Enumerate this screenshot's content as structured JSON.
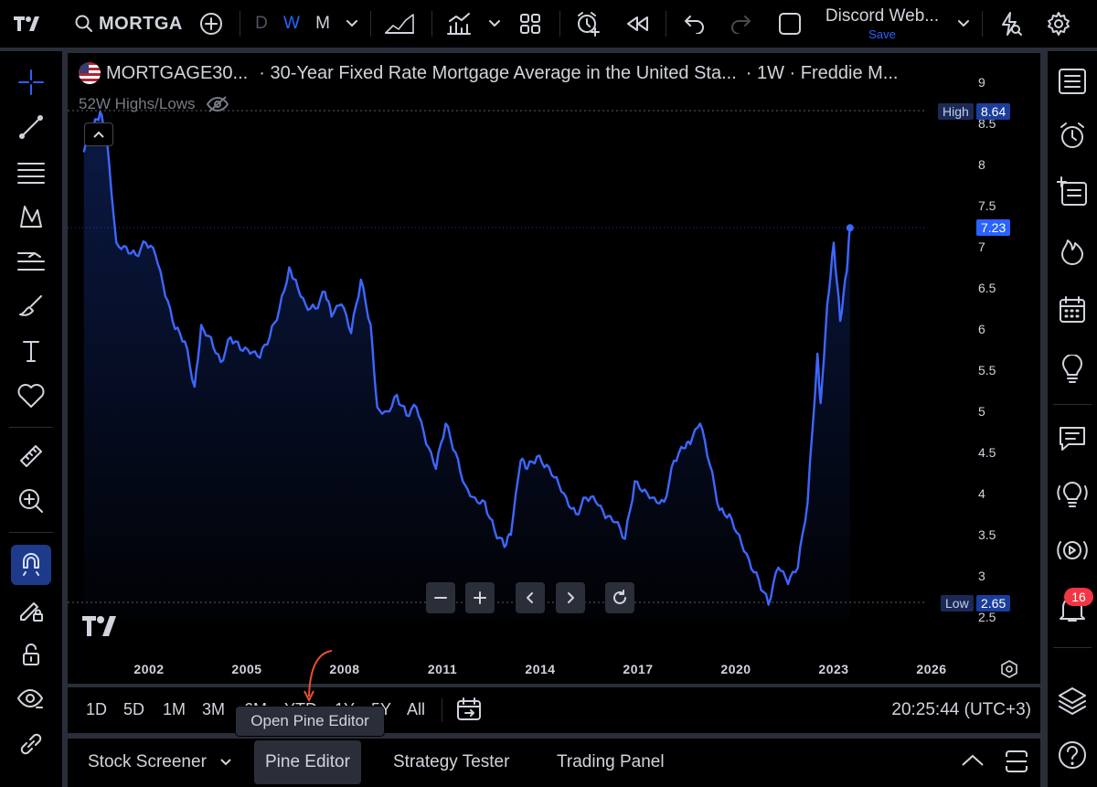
{
  "topbar": {
    "symbol": "MORTGA",
    "intervals": [
      "D",
      "W",
      "M"
    ],
    "active_interval": "W",
    "layout_name": "Discord Web...",
    "layout_save": "Save"
  },
  "legend": {
    "symbol": "MORTGAGE30...",
    "description": "· 30-Year Fixed Rate Mortgage Average in the United Sta...",
    "interval_source": "· 1W · Freddie M..."
  },
  "hl_indicator": {
    "label": "52W Highs/Lows"
  },
  "price_axis": {
    "labels": [
      "9",
      "8.5",
      "8",
      "7.5",
      "7",
      "6.5",
      "6",
      "5.5",
      "5",
      "4.5",
      "4",
      "3.5",
      "3",
      "2.5"
    ]
  },
  "high_tag": {
    "label": "High",
    "value": "8.64"
  },
  "low_tag": {
    "label": "Low",
    "value": "2.65"
  },
  "current_tag": {
    "value": "7.23"
  },
  "time_axis": {
    "labels": [
      "2002",
      "2005",
      "2008",
      "2011",
      "2014",
      "2017",
      "2020",
      "2023",
      "2026"
    ]
  },
  "range_bar": {
    "ranges": [
      "1D",
      "5D",
      "1M",
      "3M",
      "6M",
      "YTD",
      "1Y",
      "5Y",
      "All"
    ],
    "clock": "20:25:44 (UTC+3)"
  },
  "tooltip": {
    "text": "Open Pine Editor"
  },
  "bottom_tabs": {
    "stock_screener": "Stock Screener",
    "pine_editor": "Pine Editor",
    "strategy_tester": "Strategy Tester",
    "trading_panel": "Trading Panel"
  },
  "notifications": {
    "count": "16"
  },
  "colors": {
    "line": "#3d67ff",
    "accent": "#2962ff",
    "badge": "#f23645",
    "background": "#000000"
  },
  "chart_data": {
    "type": "area",
    "ylim": [
      2.5,
      9
    ],
    "x": [
      2000.0,
      2000.3,
      2000.5,
      2000.7,
      2001.0,
      2001.3,
      2001.6,
      2001.9,
      2002.2,
      2002.5,
      2002.8,
      2003.1,
      2003.4,
      2003.6,
      2003.9,
      2004.2,
      2004.5,
      2004.8,
      2005.1,
      2005.4,
      2005.7,
      2006.0,
      2006.3,
      2006.5,
      2006.8,
      2007.1,
      2007.4,
      2007.6,
      2007.9,
      2008.2,
      2008.5,
      2008.8,
      2009.0,
      2009.3,
      2009.6,
      2009.9,
      2010.2,
      2010.5,
      2010.8,
      2011.1,
      2011.4,
      2011.7,
      2012.0,
      2012.3,
      2012.6,
      2012.9,
      2013.1,
      2013.4,
      2013.6,
      2013.9,
      2014.2,
      2014.5,
      2014.8,
      2015.1,
      2015.4,
      2015.7,
      2016.0,
      2016.3,
      2016.6,
      2016.9,
      2017.2,
      2017.5,
      2017.8,
      2018.1,
      2018.4,
      2018.6,
      2018.9,
      2019.2,
      2019.5,
      2019.8,
      2020.1,
      2020.4,
      2020.7,
      2021.0,
      2021.3,
      2021.6,
      2021.9,
      2022.2,
      2022.5,
      2022.6,
      2022.8,
      2023.0,
      2023.2,
      2023.4,
      2023.5
    ],
    "values": [
      8.15,
      8.45,
      8.64,
      8.35,
      7.05,
      7.0,
      6.9,
      7.05,
      6.9,
      6.4,
      6.0,
      5.85,
      5.3,
      6.05,
      5.9,
      5.6,
      5.9,
      5.75,
      5.7,
      5.65,
      5.9,
      6.25,
      6.75,
      6.6,
      6.3,
      6.25,
      6.45,
      6.15,
      6.3,
      5.95,
      6.6,
      6.05,
      5.05,
      5.0,
      5.2,
      4.95,
      5.05,
      4.6,
      4.3,
      4.85,
      4.5,
      4.1,
      3.95,
      3.9,
      3.55,
      3.35,
      3.5,
      4.4,
      4.3,
      4.45,
      4.35,
      4.2,
      3.95,
      3.75,
      3.95,
      3.9,
      3.7,
      3.65,
      3.45,
      4.15,
      4.05,
      3.95,
      3.9,
      4.4,
      4.55,
      4.6,
      4.85,
      4.35,
      3.8,
      3.75,
      3.5,
      3.2,
      2.95,
      2.65,
      3.1,
      2.9,
      3.1,
      3.9,
      5.7,
      5.1,
      6.3,
      7.05,
      6.1,
      6.7,
      7.23
    ]
  }
}
